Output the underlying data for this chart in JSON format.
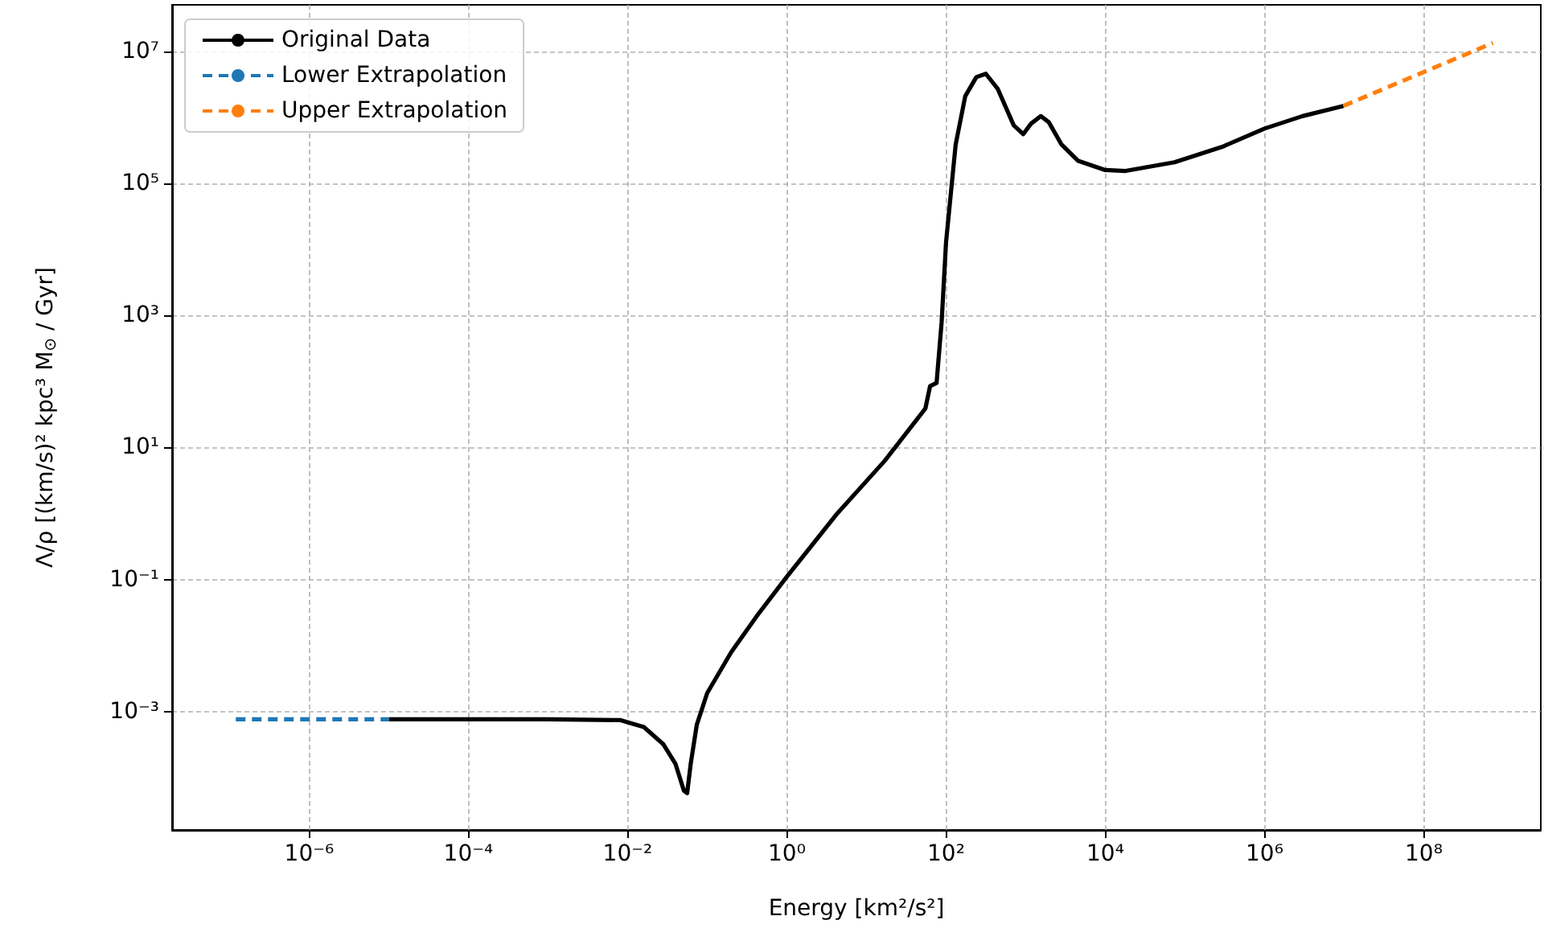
{
  "chart_data": {
    "type": "line",
    "xlabel": "Energy [km²/s²]",
    "ylabel": "Λ/ρ [(km/s)² kpc³ M$_{⊙}$ / Gyr]",
    "log": "xy",
    "grid": true,
    "legend": "top left",
    "xlim": [
      1.9e-08,
      2950000000.0
    ],
    "ylim": [
      1.6e-05,
      51000000.0
    ],
    "xticks": [
      {
        "value": 1e-06,
        "label": "10⁻⁶"
      },
      {
        "value": 0.0001,
        "label": "10⁻⁴"
      },
      {
        "value": 0.01,
        "label": "10⁻²"
      },
      {
        "value": 1,
        "label": "10⁰"
      },
      {
        "value": 100,
        "label": "10²"
      },
      {
        "value": 10000.0,
        "label": "10⁴"
      },
      {
        "value": 1000000.0,
        "label": "10⁶"
      },
      {
        "value": 100000000.0,
        "label": "10⁸"
      }
    ],
    "yticks": [
      {
        "value": 0.001,
        "label": "10⁻³"
      },
      {
        "value": 0.1,
        "label": "10⁻¹"
      },
      {
        "value": 10,
        "label": "10¹"
      },
      {
        "value": 1000,
        "label": "10³"
      },
      {
        "value": 100000.0,
        "label": "10⁵"
      },
      {
        "value": 10000000.0,
        "label": "10⁷"
      }
    ],
    "series": [
      {
        "name": "Original Data",
        "color": "#000000",
        "line_style": "solid",
        "x": [
          1e-05,
          0.0001,
          0.001,
          0.008,
          0.016,
          0.028,
          0.04,
          0.051,
          0.056,
          0.062,
          0.074,
          0.1,
          0.2,
          0.42,
          1,
          4.3,
          17,
          55,
          63,
          76,
          88,
          100,
          132,
          174,
          240,
          316,
          447,
          708,
          933,
          1170,
          1550,
          1950,
          2820,
          4570,
          10000.0,
          18000.0,
          74000.0,
          295000.0,
          1000000.0,
          3000000.0,
          9800000.0
        ],
        "values": [
          0.00076,
          0.00076,
          0.00076,
          0.00074,
          0.00058,
          0.00032,
          0.00016,
          6.3e-05,
          5.8e-05,
          0.00016,
          0.00063,
          0.0019,
          0.0079,
          0.028,
          0.11,
          1.0,
          6.3,
          39,
          85,
          95,
          800,
          13000.0,
          390000.0,
          2100000.0,
          4100000.0,
          4600000.0,
          2700000.0,
          760000.0,
          560000.0,
          810000.0,
          1050000.0,
          850000.0,
          390000.0,
          220000.0,
          160000.0,
          155000.0,
          210000.0,
          360000.0,
          680000.0,
          1050000.0,
          1500000.0
        ]
      },
      {
        "name": "Lower Extrapolation",
        "color": "#1f77b4",
        "line_style": "dashed",
        "x": [
          1.2e-07,
          1e-05
        ],
        "values": [
          0.00076,
          0.00076
        ]
      },
      {
        "name": "Upper Extrapolation",
        "color": "#ff7f0e",
        "line_style": "dashed",
        "x": [
          9800000.0,
          740000000.0
        ],
        "values": [
          1500000.0,
          13500000.0
        ]
      }
    ]
  }
}
